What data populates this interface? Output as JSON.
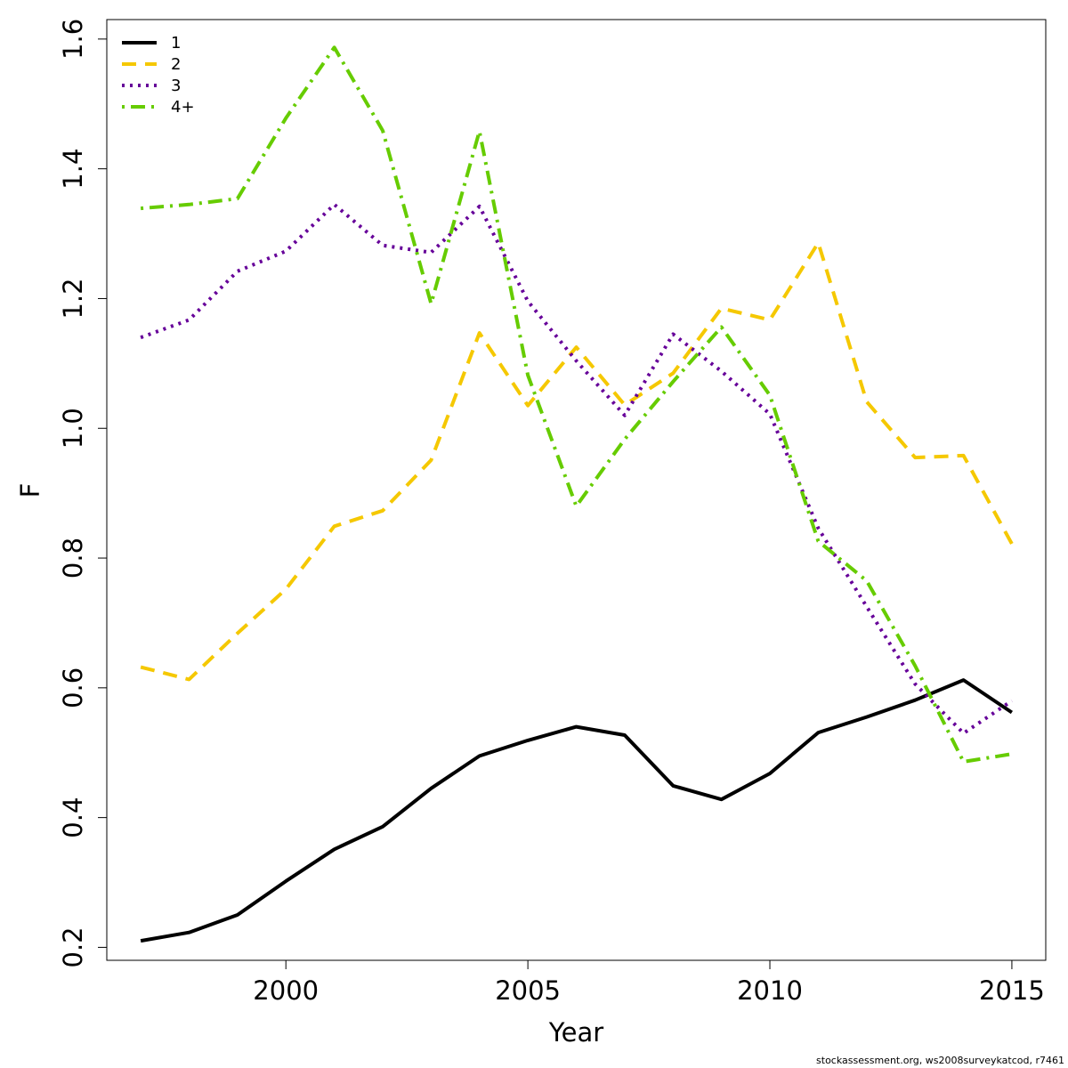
{
  "chart_data": {
    "type": "line",
    "title": "",
    "xlabel": "Year",
    "ylabel": "F",
    "xlim": [
      1996.3,
      2015.7
    ],
    "ylim": [
      0.18,
      1.63
    ],
    "x_ticks": [
      2000,
      2005,
      2010,
      2015
    ],
    "y_ticks": [
      0.2,
      0.4,
      0.6,
      0.8,
      1.0,
      1.2,
      1.4,
      1.6
    ],
    "y_tick_labels": [
      "0.2",
      "0.4",
      "0.6",
      "0.8",
      "1.0",
      "1.2",
      "1.4",
      "1.6"
    ],
    "grid": false,
    "legend_position": "top-left",
    "x": [
      1997,
      1998,
      1999,
      2000,
      2001,
      2002,
      2003,
      2004,
      2005,
      2006,
      2007,
      2008,
      2009,
      2010,
      2011,
      2012,
      2013,
      2014,
      2015
    ],
    "series": [
      {
        "name": "1",
        "color": "#000000",
        "dash": "solid",
        "values": [
          0.21,
          0.223,
          0.25,
          0.302,
          0.351,
          0.386,
          0.445,
          0.495,
          0.519,
          0.54,
          0.527,
          0.449,
          0.428,
          0.468,
          0.531,
          0.555,
          0.581,
          0.612,
          0.562
        ]
      },
      {
        "name": "2",
        "color": "#f5c800",
        "dash": "dashed",
        "values": [
          0.632,
          0.613,
          0.684,
          0.752,
          0.849,
          0.873,
          0.951,
          1.147,
          1.035,
          1.125,
          1.036,
          1.085,
          1.185,
          1.167,
          1.286,
          1.041,
          0.955,
          0.958,
          0.822
        ]
      },
      {
        "name": "3",
        "color": "#660099",
        "dash": "dotted",
        "values": [
          1.14,
          1.167,
          1.242,
          1.273,
          1.345,
          1.282,
          1.271,
          1.342,
          1.196,
          1.104,
          1.02,
          1.145,
          1.088,
          1.022,
          0.846,
          0.725,
          0.606,
          0.53,
          0.58
        ]
      },
      {
        "name": "4+",
        "color": "#66cc00",
        "dash": "dotdash",
        "values": [
          1.339,
          1.345,
          1.354,
          1.478,
          1.587,
          1.459,
          1.192,
          1.458,
          1.082,
          0.88,
          0.983,
          1.072,
          1.156,
          1.051,
          0.826,
          0.765,
          0.634,
          0.486,
          0.498
        ]
      }
    ]
  },
  "footer": {
    "text": "stockassessment.org, ws2008surveykatcod, r7461"
  }
}
